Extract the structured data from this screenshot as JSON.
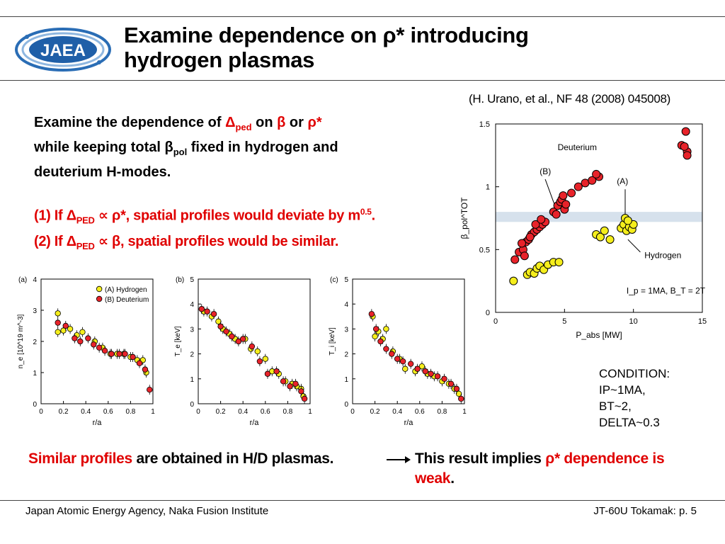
{
  "header": {
    "logo_text": "JAEA",
    "title_line1_a": "Examine dependence on ",
    "title_rho_star": "ρ*",
    "title_line1_b": " introducing",
    "title_line2": "hydrogen plasmas",
    "reference": "(H. Urano, et al., NF 48 (2008) 045008)"
  },
  "body": {
    "intro_a": "Examine the dependence of ",
    "intro_delta": "Δ",
    "intro_ped": "ped",
    "intro_on": " on ",
    "intro_beta": "β",
    "intro_or": " or ",
    "intro_rho": "ρ*",
    "intro_line2_a": "while keeping total ",
    "intro_line2_beta": "β",
    "intro_line2_pol": "pol",
    "intro_line2_b": " fixed in hydrogen and",
    "intro_line3": "deuterium H-modes.",
    "case1_a": "(1) If ",
    "case1_delta": "Δ",
    "case1_ped": "PED",
    "case1_b": " ∝ ρ*, spatial profiles would deviate by m",
    "case1_exp": "0.5",
    "case1_c": ".",
    "case2_a": "(2) If ",
    "case2_delta": "Δ",
    "case2_ped": "PED",
    "case2_b": " ∝ β, spatial profiles would be similar.",
    "condition": [
      "CONDITION:",
      "IP~1MA,",
      "BT~2,",
      "DELTA~0.3"
    ]
  },
  "conclusion": {
    "part1_red": "Similar profiles",
    "part1_black": " are obtained in H/D plasmas.",
    "part2_black": "This result implies ",
    "part2_rho": "ρ",
    "part2_red": "* dependence is",
    "part2_line2_red": "weak",
    "part2_line2_black": "."
  },
  "footer": {
    "left": "Japan Atomic Energy Agency, Naka Fusion Institute",
    "right": "JT-60U Tokamak: p. 5"
  },
  "colors": {
    "hydrogen": "#f5ee1c",
    "deuterium": "#e8232a",
    "band": "#d6e1ec",
    "accent_red": "#e00000",
    "logo_blue": "#2a6db5"
  },
  "chart_data": [
    {
      "type": "scatter",
      "panel": "main",
      "xlabel": "P_abs [MW]",
      "ylabel": "β_pol^TOT",
      "xlim": [
        0,
        15
      ],
      "ylim": [
        0,
        1.5
      ],
      "xticks": [
        "0",
        "5",
        "10",
        "15"
      ],
      "yticks": [
        "0",
        "0.5",
        "1",
        "1.5"
      ],
      "band_y": [
        0.72,
        0.8
      ],
      "annotations": {
        "deuterium": "Deuterium",
        "hydrogen": "Hydrogen",
        "a": "(A)",
        "b": "(B)",
        "cond": "I_p = 1MA, B_T = 2T"
      },
      "series": [
        {
          "name": "Hydrogen",
          "x": [
            1.3,
            2.3,
            2.5,
            2.8,
            3.0,
            3.2,
            3.5,
            3.8,
            4.2,
            4.6,
            7.3,
            7.6,
            7.9,
            8.3,
            9.1,
            9.3,
            9.5,
            9.7,
            9.9,
            10.0,
            9.4,
            9.6
          ],
          "y": [
            0.25,
            0.3,
            0.32,
            0.31,
            0.35,
            0.37,
            0.34,
            0.38,
            0.4,
            0.4,
            0.62,
            0.6,
            0.65,
            0.58,
            0.67,
            0.7,
            0.65,
            0.68,
            0.66,
            0.7,
            0.75,
            0.73
          ]
        },
        {
          "name": "Deuterium",
          "x": [
            1.4,
            1.7,
            2.0,
            2.2,
            2.4,
            2.6,
            2.8,
            3.0,
            3.2,
            3.4,
            3.6,
            2.5,
            2.9,
            3.3,
            1.9,
            2.1,
            4.2,
            4.5,
            4.7,
            4.8,
            5.0,
            5.1,
            4.4,
            4.9,
            5.5,
            6.0,
            6.5,
            7.0,
            7.5,
            7.3,
            13.5,
            13.8,
            13.9,
            13.7,
            13.9
          ],
          "y": [
            0.42,
            0.48,
            0.5,
            0.56,
            0.58,
            0.62,
            0.64,
            0.66,
            0.68,
            0.7,
            0.72,
            0.6,
            0.7,
            0.74,
            0.55,
            0.45,
            0.8,
            0.85,
            0.88,
            0.9,
            0.82,
            0.86,
            0.78,
            0.93,
            0.95,
            1.0,
            1.03,
            1.05,
            1.08,
            1.1,
            1.33,
            1.44,
            1.28,
            1.32,
            1.25
          ]
        }
      ]
    },
    {
      "type": "scatter",
      "panel": "a",
      "panel_label": "(a)",
      "xlabel": "r/a",
      "ylabel": "n_e [10^19 m^-3]",
      "xlim": [
        0,
        1
      ],
      "ylim": [
        0,
        4
      ],
      "xticks": [
        "0",
        "0.2",
        "0.4",
        "0.6",
        "0.8",
        "1"
      ],
      "yticks": [
        "0",
        "1",
        "2",
        "3",
        "4"
      ],
      "legend": [
        "(A) Hydrogen",
        "(B) Deuterium"
      ],
      "series": [
        {
          "name": "(A) Hydrogen",
          "x": [
            0.15,
            0.15,
            0.2,
            0.26,
            0.32,
            0.37,
            0.48,
            0.55,
            0.62,
            0.68,
            0.74,
            0.8,
            0.86,
            0.91,
            0.94
          ],
          "y": [
            2.9,
            2.3,
            2.35,
            2.4,
            2.2,
            2.3,
            2.0,
            1.8,
            1.6,
            1.6,
            1.6,
            1.5,
            1.4,
            1.4,
            1.0
          ]
        },
        {
          "name": "(B) Deuterium",
          "x": [
            0.15,
            0.22,
            0.3,
            0.35,
            0.42,
            0.47,
            0.52,
            0.57,
            0.63,
            0.7,
            0.75,
            0.82,
            0.88,
            0.93,
            0.97
          ],
          "y": [
            2.6,
            2.5,
            2.1,
            2.0,
            2.1,
            1.9,
            1.8,
            1.7,
            1.6,
            1.6,
            1.6,
            1.5,
            1.3,
            1.1,
            0.45
          ]
        }
      ]
    },
    {
      "type": "scatter",
      "panel": "b",
      "panel_label": "(b)",
      "xlabel": "r/a",
      "ylabel": "T_e [keV]",
      "xlim": [
        0,
        1
      ],
      "ylim": [
        0,
        5
      ],
      "xticks": [
        "0",
        "0.2",
        "0.4",
        "0.6",
        "0.8",
        "1"
      ],
      "yticks": [
        "0",
        "1",
        "2",
        "3",
        "4",
        "5"
      ],
      "series": [
        {
          "name": "(A) Hydrogen",
          "x": [
            0.05,
            0.12,
            0.18,
            0.22,
            0.28,
            0.33,
            0.42,
            0.47,
            0.53,
            0.6,
            0.66,
            0.72,
            0.78,
            0.84,
            0.88,
            0.92,
            0.94
          ],
          "y": [
            3.7,
            3.5,
            3.3,
            3.0,
            2.8,
            2.6,
            2.6,
            2.2,
            2.1,
            1.8,
            1.3,
            1.2,
            0.9,
            0.8,
            0.7,
            0.6,
            0.3
          ]
        },
        {
          "name": "(B) Deuterium",
          "x": [
            0.03,
            0.08,
            0.14,
            0.2,
            0.25,
            0.3,
            0.36,
            0.4,
            0.48,
            0.55,
            0.62,
            0.7,
            0.76,
            0.82,
            0.87,
            0.92,
            0.95
          ],
          "y": [
            3.8,
            3.7,
            3.6,
            3.1,
            2.9,
            2.7,
            2.5,
            2.6,
            2.3,
            1.7,
            1.2,
            1.3,
            0.9,
            0.7,
            0.8,
            0.5,
            0.2
          ]
        }
      ]
    },
    {
      "type": "scatter",
      "panel": "c",
      "panel_label": "(c)",
      "xlabel": "r/a",
      "ylabel": "T_i [keV]",
      "xlim": [
        0,
        1
      ],
      "ylim": [
        0,
        5
      ],
      "xticks": [
        "0",
        "0.2",
        "0.4",
        "0.6",
        "0.8",
        "1"
      ],
      "yticks": [
        "0",
        "1",
        "2",
        "3",
        "4",
        "5"
      ],
      "series": [
        {
          "name": "(A) Hydrogen",
          "x": [
            0.18,
            0.2,
            0.23,
            0.27,
            0.3,
            0.36,
            0.42,
            0.47,
            0.56,
            0.62,
            0.67,
            0.73,
            0.8,
            0.86,
            0.91,
            0.95
          ],
          "y": [
            3.5,
            2.7,
            2.9,
            2.6,
            3.0,
            2.1,
            1.8,
            1.4,
            1.3,
            1.5,
            1.2,
            1.1,
            0.9,
            0.8,
            0.6,
            0.4
          ]
        },
        {
          "name": "(B) Deuterium",
          "x": [
            0.17,
            0.21,
            0.25,
            0.3,
            0.35,
            0.4,
            0.45,
            0.52,
            0.58,
            0.65,
            0.7,
            0.76,
            0.82,
            0.88,
            0.93,
            0.97
          ],
          "y": [
            3.6,
            3.0,
            2.5,
            2.2,
            2.0,
            1.8,
            1.7,
            1.6,
            1.4,
            1.3,
            1.2,
            1.1,
            1.0,
            0.8,
            0.6,
            0.2
          ]
        }
      ]
    }
  ]
}
